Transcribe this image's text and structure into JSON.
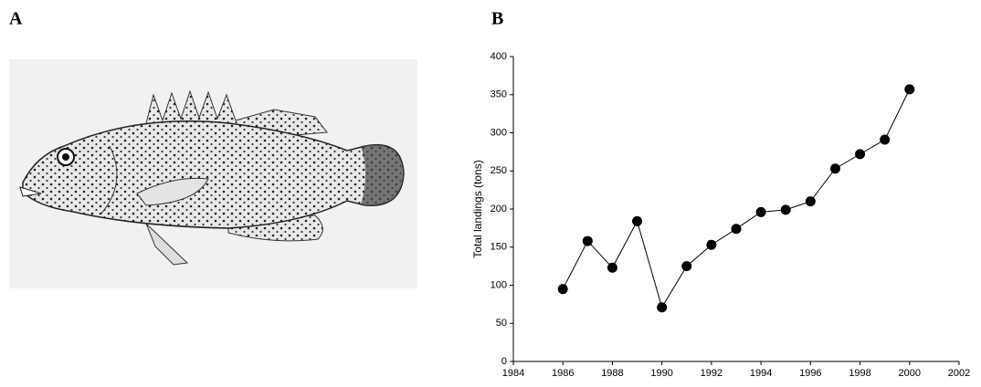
{
  "panel_labels": [
    "A",
    "B"
  ],
  "chart_data": {
    "type": "line",
    "y_label": "Total landings (tons)",
    "x": [
      1986,
      1987,
      1988,
      1989,
      1990,
      1991,
      1992,
      1993,
      1994,
      1995,
      1996,
      1997,
      1998,
      1999,
      2000
    ],
    "series": [
      {
        "color": "#000000",
        "values": [
          95,
          158,
          123,
          184,
          71,
          125,
          153,
          174,
          196,
          199,
          210,
          253,
          272,
          291,
          357
        ]
      }
    ],
    "xlim": [
      1984,
      2002
    ],
    "xticks": [
      1984,
      1986,
      1988,
      1990,
      1992,
      1994,
      1996,
      1998,
      2000,
      2002
    ],
    "ylim": [
      0,
      400
    ],
    "yticks": [
      0,
      50,
      100,
      150,
      200,
      250,
      300,
      350,
      400
    ],
    "grid": false
  }
}
